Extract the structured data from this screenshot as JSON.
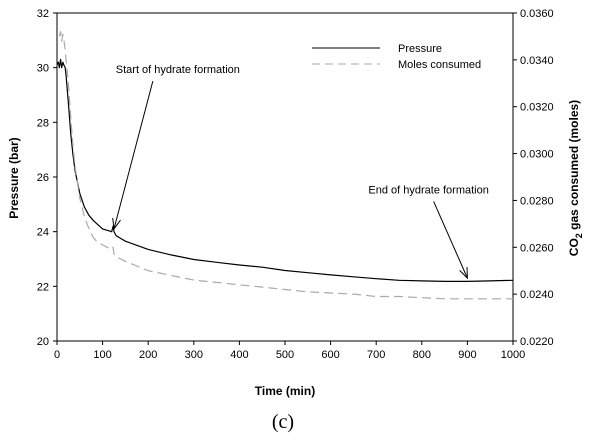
{
  "chart_data": {
    "type": "line",
    "caption": "(c)",
    "xlabel": "Time (min)",
    "ylabel": "Pressure (bar)",
    "y2label_pre": "CO",
    "y2label_sub": "2",
    "y2label_post": " gas consumed (moles)",
    "xlim": [
      0,
      1000
    ],
    "ylim": [
      20,
      32
    ],
    "y2lim": [
      0.022,
      0.036
    ],
    "xticks": [
      0,
      100,
      200,
      300,
      400,
      500,
      600,
      700,
      800,
      900,
      1000
    ],
    "yticks": [
      20,
      22,
      24,
      26,
      28,
      30,
      32
    ],
    "y2ticks": [
      "0.0220",
      "0.0240",
      "0.0260",
      "0.0280",
      "0.0300",
      "0.0320",
      "0.0340",
      "0.0360"
    ],
    "grid": false,
    "legend_position": "top-right",
    "series": [
      {
        "name": "Pressure",
        "axis": "left",
        "color": "#000000",
        "dash": "solid",
        "x": [
          0,
          3,
          5,
          8,
          10,
          13,
          15,
          18,
          20,
          25,
          30,
          35,
          40,
          50,
          60,
          70,
          80,
          90,
          100,
          110,
          120,
          123,
          125,
          128,
          130,
          140,
          150,
          175,
          200,
          250,
          300,
          350,
          400,
          450,
          500,
          550,
          600,
          650,
          700,
          750,
          800,
          850,
          900,
          950,
          1000
        ],
        "values": [
          30.1,
          30.2,
          30.0,
          30.3,
          30.0,
          30.2,
          30.1,
          30.0,
          29.7,
          28.7,
          27.6,
          26.8,
          26.2,
          25.4,
          24.9,
          24.6,
          24.4,
          24.25,
          24.1,
          24.05,
          24.0,
          24.2,
          24.0,
          23.9,
          23.85,
          23.75,
          23.65,
          23.5,
          23.35,
          23.15,
          22.98,
          22.88,
          22.78,
          22.7,
          22.58,
          22.5,
          22.42,
          22.35,
          22.28,
          22.22,
          22.2,
          22.18,
          22.18,
          22.2,
          22.22
        ]
      },
      {
        "name": "Moles consumed",
        "axis": "right",
        "color": "#aaaaaa",
        "dash": "dashed",
        "x": [
          5,
          8,
          10,
          13,
          15,
          18,
          20,
          25,
          30,
          35,
          40,
          50,
          60,
          70,
          80,
          90,
          100,
          110,
          120,
          123,
          125,
          130,
          140,
          150,
          175,
          200,
          250,
          300,
          350,
          400,
          450,
          500,
          550,
          600,
          650,
          700,
          750,
          800,
          850,
          900,
          950,
          1000
        ],
        "values": [
          0.035,
          0.0352,
          0.0348,
          0.0351,
          0.0349,
          0.0344,
          0.034,
          0.033,
          0.0316,
          0.0303,
          0.0294,
          0.0281,
          0.0273,
          0.0268,
          0.0264,
          0.0262,
          0.0261,
          0.026,
          0.0259,
          0.026,
          0.0257,
          0.0256,
          0.0255,
          0.0254,
          0.0252,
          0.025,
          0.0248,
          0.0246,
          0.0245,
          0.0244,
          0.0243,
          0.0242,
          0.0241,
          0.02405,
          0.024,
          0.0239,
          0.0239,
          0.02385,
          0.0238,
          0.0238,
          0.0238,
          0.0238
        ]
      }
    ],
    "annotations": [
      {
        "text": "Start of hydrate formation",
        "target_x": 125,
        "target_y": 24.1,
        "text_x": 265,
        "text_y": 29.8
      },
      {
        "text": "End of hydrate formation",
        "target_x": 900,
        "target_y": 22.3,
        "text_x": 815,
        "text_y": 25.4
      }
    ]
  }
}
